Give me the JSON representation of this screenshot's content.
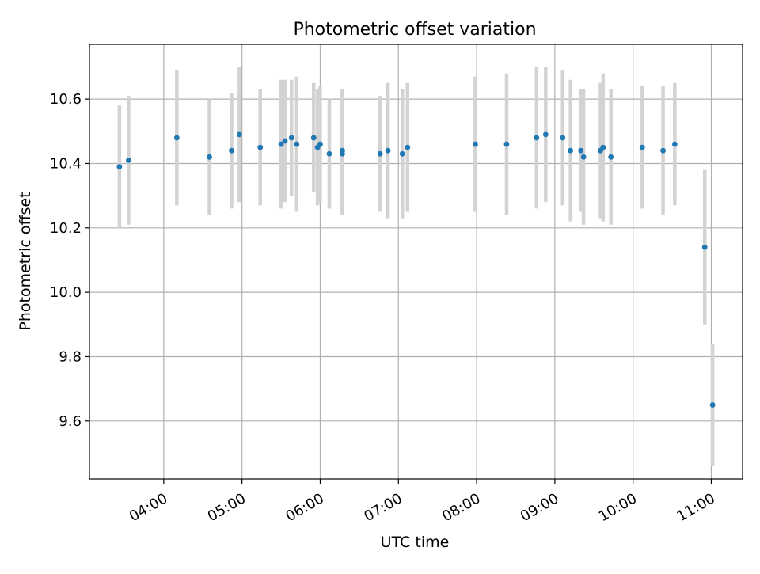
{
  "chart_data": {
    "type": "scatter",
    "title": "Photometric offset variation",
    "xlabel": "UTC time",
    "ylabel": "Photometric offset",
    "x_unit": "UTC hours",
    "xlim": [
      "03:03",
      "11:24"
    ],
    "ylim": [
      9.42,
      10.77
    ],
    "grid": true,
    "legend": "none",
    "x_ticks": [
      "04:00",
      "05:00",
      "06:00",
      "07:00",
      "08:00",
      "09:00",
      "10:00",
      "11:00"
    ],
    "y_ticks": [
      "9.6",
      "9.8",
      "10.0",
      "10.2",
      "10.4",
      "10.6"
    ],
    "series": [
      {
        "marker_color": "#1f77b4",
        "errorbar_color": "#d3d3d3",
        "points": [
          {
            "x": "03:26",
            "y": 10.39,
            "err": 0.19
          },
          {
            "x": "03:33",
            "y": 10.41,
            "err": 0.2
          },
          {
            "x": "04:10",
            "y": 10.48,
            "err": 0.21
          },
          {
            "x": "04:35",
            "y": 10.42,
            "err": 0.18
          },
          {
            "x": "04:52",
            "y": 10.44,
            "err": 0.18
          },
          {
            "x": "04:58",
            "y": 10.49,
            "err": 0.21
          },
          {
            "x": "05:14",
            "y": 10.45,
            "err": 0.18
          },
          {
            "x": "05:30",
            "y": 10.46,
            "err": 0.2
          },
          {
            "x": "05:33",
            "y": 10.47,
            "err": 0.19
          },
          {
            "x": "05:38",
            "y": 10.48,
            "err": 0.18
          },
          {
            "x": "05:42",
            "y": 10.46,
            "err": 0.21
          },
          {
            "x": "05:55",
            "y": 10.48,
            "err": 0.17
          },
          {
            "x": "05:58",
            "y": 10.45,
            "err": 0.18
          },
          {
            "x": "06:00",
            "y": 10.46,
            "err": 0.18
          },
          {
            "x": "06:07",
            "y": 10.43,
            "err": 0.17
          },
          {
            "x": "06:17",
            "y": 10.43,
            "err": 0.19
          },
          {
            "x": "06:17",
            "y": 10.44,
            "err": 0.19
          },
          {
            "x": "06:46",
            "y": 10.43,
            "err": 0.18
          },
          {
            "x": "06:52",
            "y": 10.44,
            "err": 0.21
          },
          {
            "x": "07:03",
            "y": 10.43,
            "err": 0.2
          },
          {
            "x": "07:07",
            "y": 10.45,
            "err": 0.2
          },
          {
            "x": "07:59",
            "y": 10.46,
            "err": 0.21
          },
          {
            "x": "08:23",
            "y": 10.46,
            "err": 0.22
          },
          {
            "x": "08:46",
            "y": 10.48,
            "err": 0.22
          },
          {
            "x": "08:53",
            "y": 10.49,
            "err": 0.21
          },
          {
            "x": "09:06",
            "y": 10.48,
            "err": 0.21
          },
          {
            "x": "09:12",
            "y": 10.44,
            "err": 0.22
          },
          {
            "x": "09:20",
            "y": 10.44,
            "err": 0.19
          },
          {
            "x": "09:22",
            "y": 10.42,
            "err": 0.21
          },
          {
            "x": "09:35",
            "y": 10.44,
            "err": 0.21
          },
          {
            "x": "09:37",
            "y": 10.45,
            "err": 0.23
          },
          {
            "x": "09:43",
            "y": 10.42,
            "err": 0.21
          },
          {
            "x": "10:07",
            "y": 10.45,
            "err": 0.19
          },
          {
            "x": "10:23",
            "y": 10.44,
            "err": 0.2
          },
          {
            "x": "10:32",
            "y": 10.46,
            "err": 0.19
          },
          {
            "x": "10:55",
            "y": 10.14,
            "err": 0.24
          },
          {
            "x": "11:01",
            "y": 9.65,
            "err": 0.19
          }
        ]
      }
    ]
  }
}
